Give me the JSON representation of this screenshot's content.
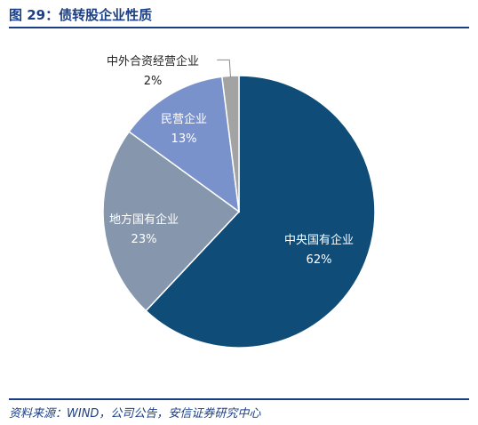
{
  "header": {
    "title": "图 29：债转股企业性质"
  },
  "chart_data": {
    "type": "pie",
    "title": "",
    "slices": [
      {
        "label": "中央国有企业",
        "value": 62,
        "value_label": "62%",
        "color": "#0f4c78",
        "label_color": "#ffffff"
      },
      {
        "label": "地方国有企业",
        "value": 23,
        "value_label": "23%",
        "color": "#8697ad",
        "label_color": "#ffffff"
      },
      {
        "label": "民营企业",
        "value": 13,
        "value_label": "13%",
        "color": "#7a92cc",
        "label_color": "#ffffff"
      },
      {
        "label": "中外合资经营企业",
        "value": 2,
        "value_label": "2%",
        "color": "#a3a3a3",
        "label_color": "#222222"
      }
    ]
  },
  "footer": {
    "source": "资料来源：WIND，公司公告，安信证券研究中心"
  },
  "colors": {
    "brand": "#1b3f85"
  }
}
